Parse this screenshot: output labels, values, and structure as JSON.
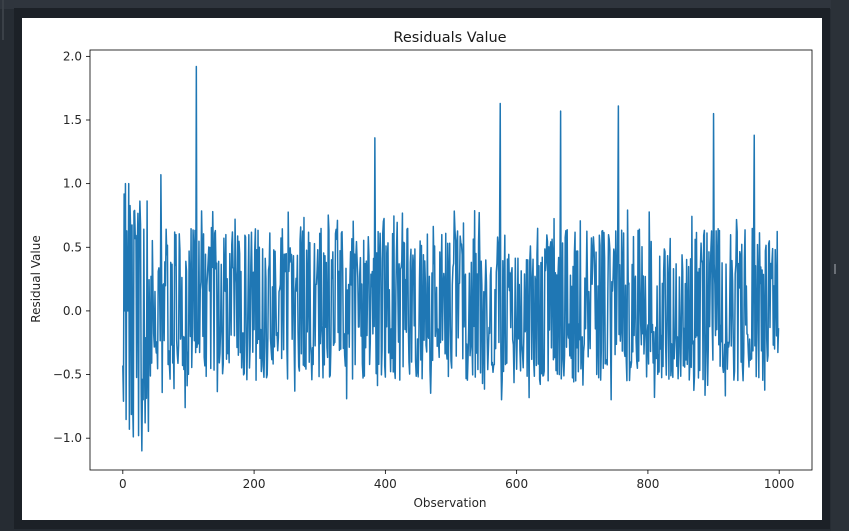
{
  "chart_data": {
    "type": "line",
    "title": "Residuals Value",
    "xlabel": "Observation",
    "ylabel": "Residual Value",
    "xlim": [
      -50,
      1050
    ],
    "ylim": [
      -1.25,
      2.05
    ],
    "xticks": [
      0,
      200,
      400,
      600,
      800,
      1000
    ],
    "xtick_labels": [
      "0",
      "200",
      "400",
      "600",
      "800",
      "1000"
    ],
    "yticks": [
      -1.0,
      -0.5,
      0.0,
      0.5,
      1.0,
      1.5,
      2.0
    ],
    "ytick_labels": [
      "−1.0",
      "−0.5",
      "0.0",
      "0.5",
      "1.0",
      "1.5",
      "2.0"
    ],
    "grid": false,
    "series": [
      {
        "color": "#1f77b4",
        "n_points": 1000,
        "typical_range": [
          -0.5,
          0.65
        ],
        "early_range": [
          -1.1,
          1.0
        ],
        "spikes": [
          {
            "x": 112,
            "y": 1.92
          },
          {
            "x": 384,
            "y": 1.36
          },
          {
            "x": 575,
            "y": 1.63
          },
          {
            "x": 667,
            "y": 1.57
          },
          {
            "x": 755,
            "y": 1.61
          },
          {
            "x": 900,
            "y": 1.55
          },
          {
            "x": 962,
            "y": 1.38
          },
          {
            "x": 58,
            "y": 1.07
          },
          {
            "x": 29,
            "y": -1.1
          },
          {
            "x": 16,
            "y": -0.99
          },
          {
            "x": 24,
            "y": -0.98
          },
          {
            "x": 95,
            "y": -0.76
          }
        ]
      }
    ]
  }
}
